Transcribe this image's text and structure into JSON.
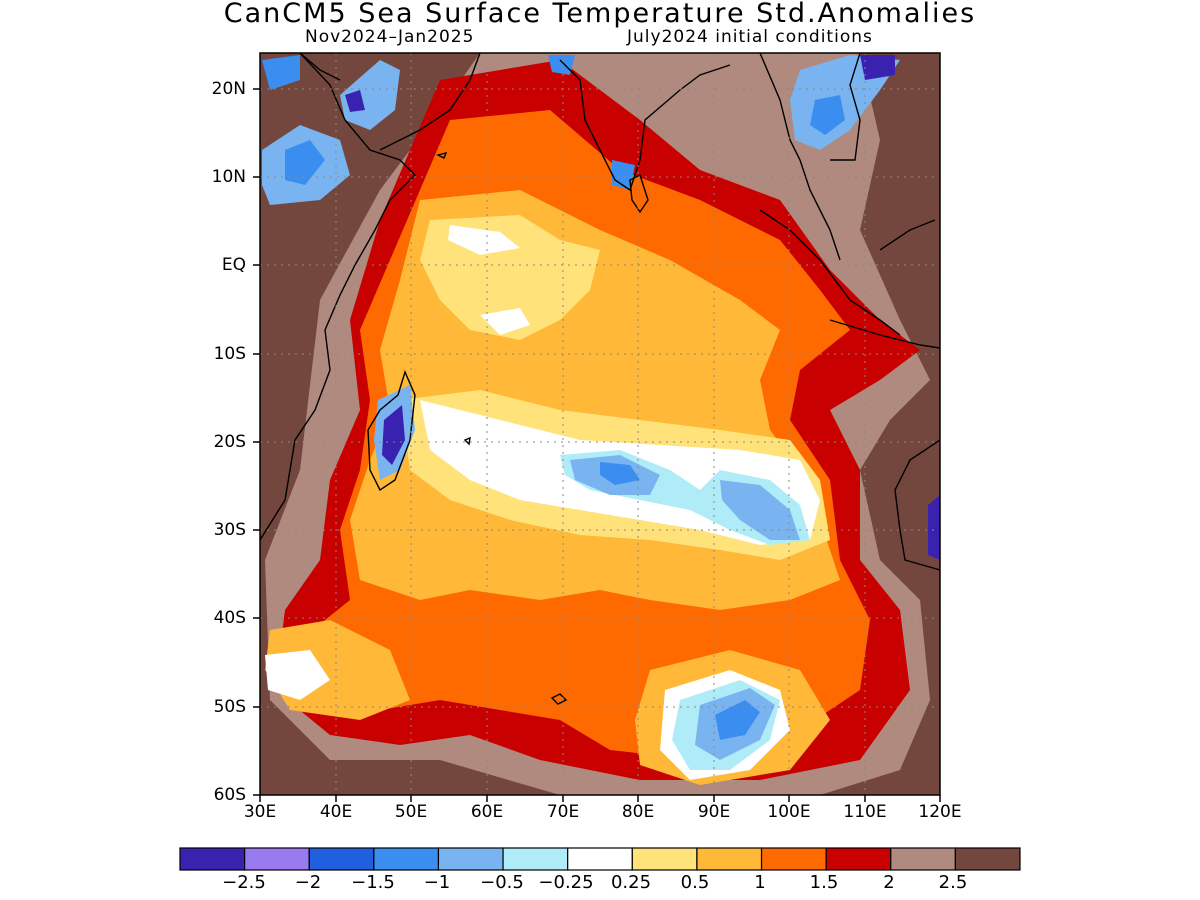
{
  "title": "CanCM5 Sea Surface Temperature Std.Anomalies",
  "subtitle_left": "Nov2024–Jan2025",
  "subtitle_right": "July2024 initial conditions",
  "map": {
    "lon_range": [
      30,
      120
    ],
    "lat_range": [
      -60,
      24
    ],
    "lat_labels": [
      "20N",
      "10N",
      "EQ",
      "10S",
      "20S",
      "30S",
      "40S",
      "50S",
      "60S"
    ],
    "lon_labels": [
      "30E",
      "40E",
      "50E",
      "60E",
      "70E",
      "80E",
      "90E",
      "100E",
      "110E",
      "120E"
    ],
    "grid": "dotted"
  },
  "colorbar": {
    "colors": [
      "#3a22b0",
      "#9a7af0",
      "#1f5fe0",
      "#3a8ef0",
      "#7ab4f0",
      "#b0ecf8",
      "#ffffff",
      "#ffe37a",
      "#ffb838",
      "#ff6a00",
      "#c80000",
      "#b08a7e",
      "#74473e"
    ],
    "labels": [
      "−2.5",
      "−2",
      "−1.5",
      "−1",
      "−0.5",
      "−0.25",
      "0.25",
      "0.5",
      "1",
      "1.5",
      "2",
      "2.5"
    ]
  },
  "colors": {
    "high_anomaly": "#74473e",
    "moderate_anomaly": "#c80000",
    "neutral": "#ffffff",
    "negative_anomaly": "#3a8ef0"
  }
}
